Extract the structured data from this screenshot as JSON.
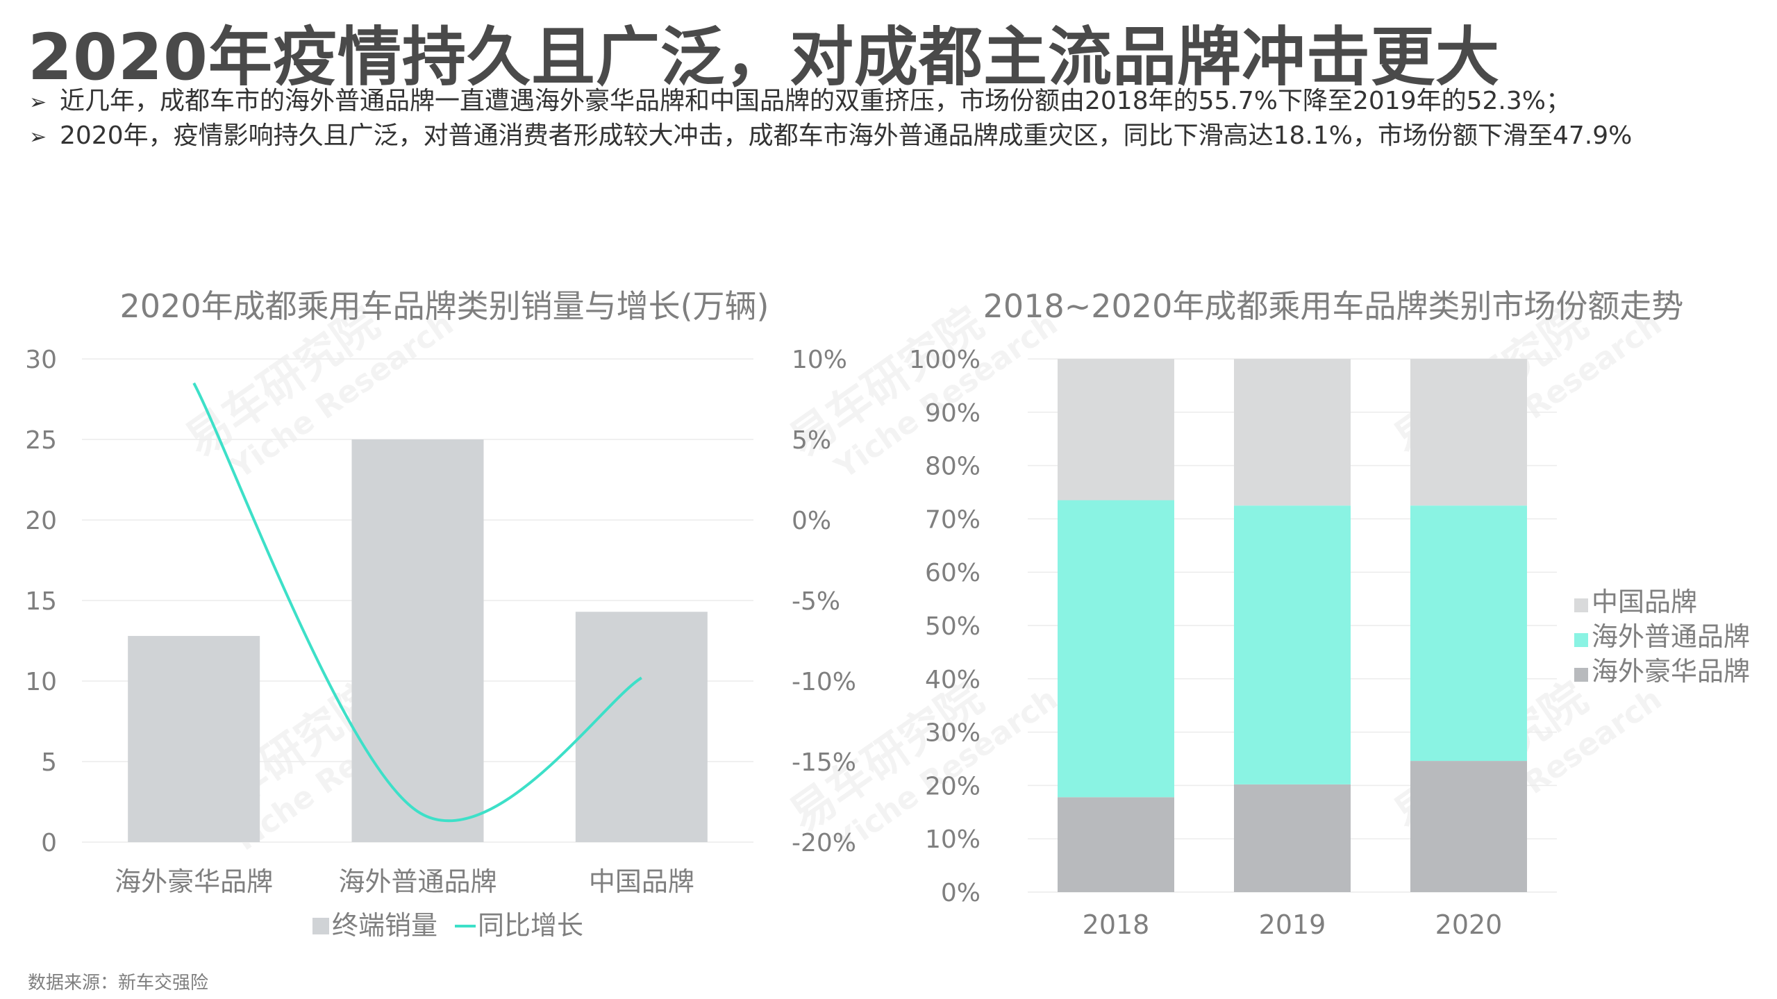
{
  "title": "2020年疫情持久且广泛，对成都主流品牌冲击更大",
  "bullets": [
    "近几年，成都车市的海外普通品牌一直遭遇海外豪华品牌和中国品牌的双重挤压，市场份额由2018年的55.7%下降至2019年的52.3%；",
    "2020年，疫情影响持久且广泛，对普通消费者形成较大冲击，成都车市海外普通品牌成重灾区，同比下滑高达18.1%，市场份额下滑至47.9%"
  ],
  "bullet_marker": "➢",
  "source": "数据来源：新车交强险",
  "watermark": {
    "cn": "易车研究院",
    "en": "Yiche Research"
  },
  "colors": {
    "bar_gray": "#d0d3d6",
    "line_teal": "#3de0c8",
    "china": "#d9dadb",
    "overseas_normal": "#8af3e3",
    "overseas_luxury": "#b8babd"
  },
  "chart_data": [
    {
      "type": "bar",
      "title": "2020年成都乘用车品牌类别销量与增长(万辆)",
      "categories": [
        "海外豪华品牌",
        "海外普通品牌",
        "中国品牌"
      ],
      "ylim": [
        0,
        30
      ],
      "y_ticks": [
        "0",
        "5",
        "10",
        "15",
        "20",
        "25",
        "30"
      ],
      "y2lim": [
        -20,
        10
      ],
      "y2_ticks": [
        "-20%",
        "-15%",
        "-10%",
        "-5%",
        "0%",
        "5%",
        "10%"
      ],
      "series": [
        {
          "name": "终端销量",
          "type": "bar",
          "values": [
            12.8,
            25.0,
            14.3
          ]
        },
        {
          "name": "同比增长",
          "type": "line",
          "axis": "secondary",
          "values": [
            8.5,
            -18.1,
            -9.8
          ]
        }
      ],
      "grid": true,
      "legend_position": "bottom"
    },
    {
      "type": "bar",
      "stacked": true,
      "title": "2018~2020年成都乘用车品牌类别市场份额走势",
      "categories": [
        "2018",
        "2019",
        "2020"
      ],
      "ylim": [
        0,
        100
      ],
      "y_ticks": [
        "0%",
        "10%",
        "20%",
        "30%",
        "40%",
        "50%",
        "60%",
        "70%",
        "80%",
        "90%",
        "100%"
      ],
      "series": [
        {
          "name": "海外豪华品牌",
          "values": [
            17.8,
            20.2,
            24.6
          ]
        },
        {
          "name": "海外普通品牌",
          "values": [
            55.7,
            52.3,
            47.9
          ]
        },
        {
          "name": "中国品牌",
          "values": [
            26.5,
            27.5,
            27.5
          ]
        }
      ],
      "legend_order": [
        "中国品牌",
        "海外普通品牌",
        "海外豪华品牌"
      ],
      "grid": true,
      "legend_position": "right"
    }
  ]
}
